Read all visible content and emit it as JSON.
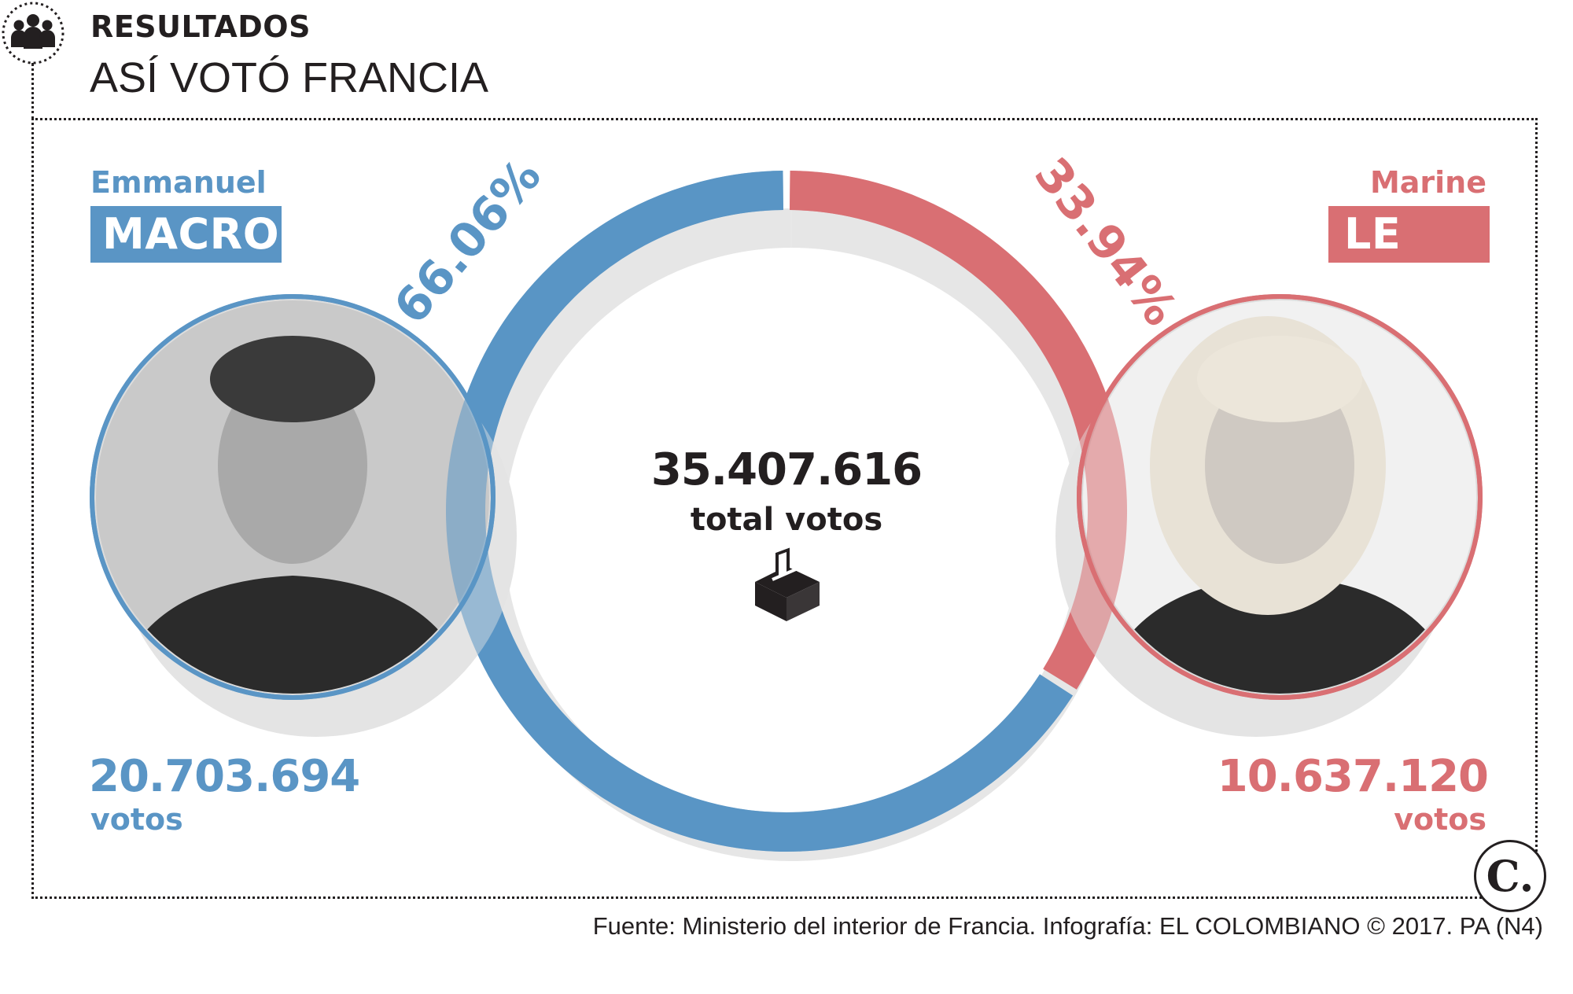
{
  "header": {
    "kicker": "RESULTADOS",
    "title": "ASÍ VOTÓ FRANCIA",
    "icon": "people-group-icon"
  },
  "colors": {
    "macron": "#5a95c5",
    "le_pen": "#d96f73",
    "text_dark": "#231f20",
    "shadow": "#e6e6e6"
  },
  "candidates": [
    {
      "first_name": "Emmanuel",
      "last_name": "MACRON",
      "percent_label": "66.06%",
      "votes": "20.703.694",
      "votes_label": "votos",
      "photo": "macron-portrait-photo"
    },
    {
      "first_name": "Marine",
      "last_name": "LE PEN",
      "percent_label": "33.94%",
      "votes": "10.637.120",
      "votes_label": "votos",
      "photo": "le-pen-portrait-photo"
    }
  ],
  "center": {
    "total": "35.407.616",
    "total_label": "total votos",
    "icon": "ballot-box-icon"
  },
  "chart_data": {
    "type": "pie",
    "variant": "donut",
    "categories": [
      "MACRON",
      "LE PEN"
    ],
    "values": [
      66.06,
      33.94
    ],
    "votes": [
      20703694,
      10637120
    ],
    "total": 35407616,
    "colors": [
      "#5a95c5",
      "#d96f73"
    ],
    "title": "ASÍ VOTÓ FRANCIA"
  },
  "footer": {
    "source": "Fuente: Ministerio del interior de Francia. Infografía: EL COLOMBIANO © 2017. PA (N4)",
    "logo_text": "C."
  }
}
